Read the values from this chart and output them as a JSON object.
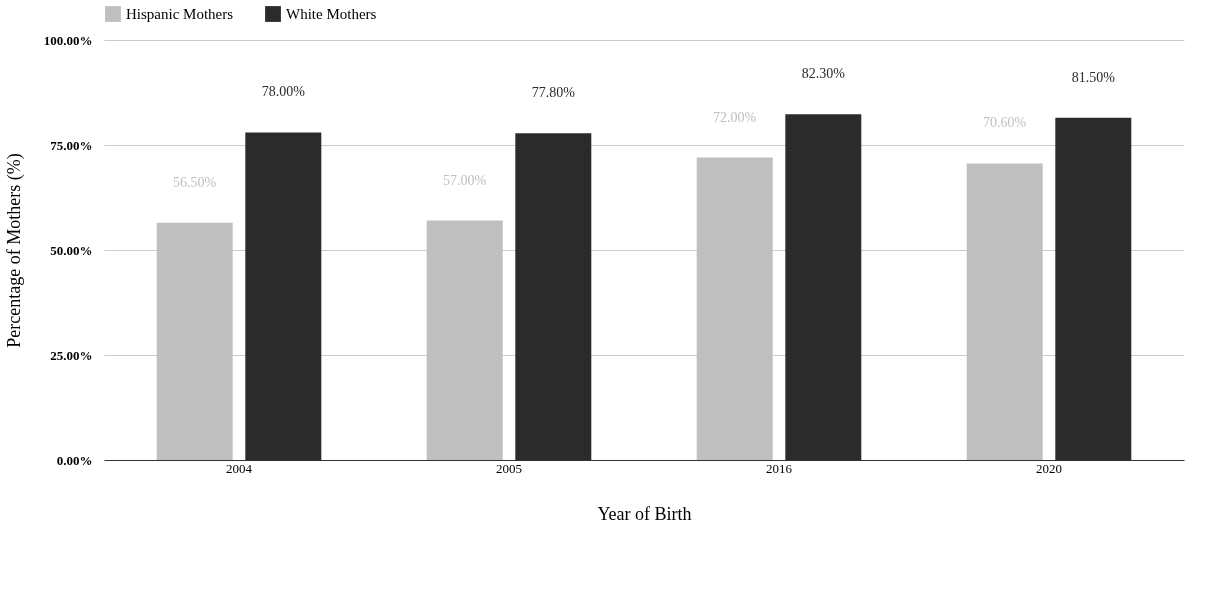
{
  "chart_data": {
    "type": "bar",
    "xlabel": "Year of Birth",
    "ylabel": "Percentage of Mothers (%)",
    "categories": [
      "2004",
      "2005",
      "2016",
      "2020"
    ],
    "series": [
      {
        "name": "Hispanic Mothers",
        "color": "#bfbfbf",
        "values": [
          56.5,
          57.0,
          72.0,
          70.6
        ],
        "value_labels": [
          "56.50%",
          "57.00%",
          "72.00%",
          "70.60%"
        ]
      },
      {
        "name": "White Mothers",
        "color": "#2b2b2b",
        "values": [
          78.0,
          77.8,
          82.3,
          81.5
        ],
        "value_labels": [
          "78.00%",
          "77.80%",
          "82.30%",
          "81.50%"
        ]
      }
    ],
    "ylim": [
      0,
      100
    ],
    "yticks": [
      {
        "value": 0,
        "label": "0.00%"
      },
      {
        "value": 25,
        "label": "25.00%"
      },
      {
        "value": 50,
        "label": "50.00%"
      },
      {
        "value": 75,
        "label": "75.00%"
      },
      {
        "value": 100,
        "label": "100.00%"
      }
    ],
    "grid": "y",
    "legend": "top"
  }
}
